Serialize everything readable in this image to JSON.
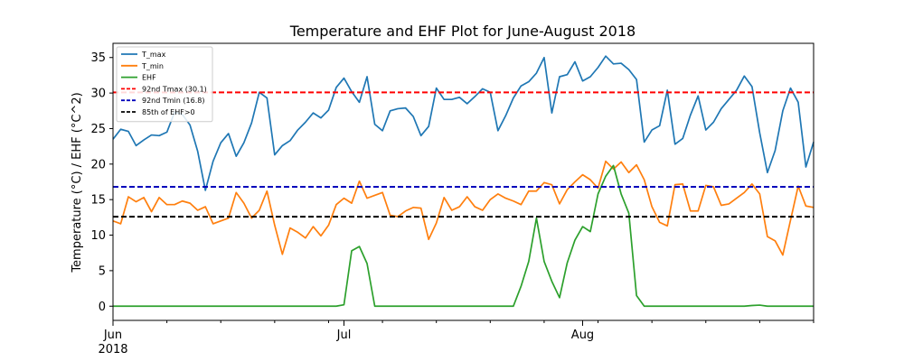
{
  "chart_data": {
    "type": "line",
    "title": "Temperature and EHF Plot for June-August 2018",
    "xlabel": "",
    "ylabel": "Temperature (°C) / EHF (°C^2)",
    "xlim": [
      "2018-06-01",
      "2018-08-31"
    ],
    "ylim": [
      -2,
      37
    ],
    "y_ticks": [
      0,
      5,
      10,
      15,
      20,
      25,
      30,
      35
    ],
    "x_major_ticks": [
      {
        "date": "2018-06-01",
        "label": "Jun",
        "sublabel": "2018"
      },
      {
        "date": "2018-07-01",
        "label": "Jul",
        "sublabel": ""
      },
      {
        "date": "2018-08-01",
        "label": "Aug",
        "sublabel": ""
      }
    ],
    "grid": false,
    "legend_position": "top-left",
    "start_date": "2018-06-01",
    "series": [
      {
        "name": "T_max",
        "color": "#1f77b4",
        "style": "solid",
        "values": [
          23.5,
          24.9,
          24.6,
          22.6,
          23.4,
          24.1,
          24.0,
          24.5,
          27.3,
          27.0,
          25.5,
          21.8,
          16.3,
          20.4,
          23.0,
          24.3,
          21.1,
          23.0,
          25.8,
          30.1,
          29.3,
          21.3,
          22.6,
          23.3,
          24.8,
          25.9,
          27.2,
          26.5,
          27.6,
          30.8,
          32.1,
          30.2,
          28.7,
          32.3,
          25.6,
          24.7,
          27.5,
          27.8,
          27.9,
          26.7,
          24.0,
          25.3,
          30.7,
          29.1,
          29.1,
          29.4,
          28.5,
          29.5,
          30.6,
          30.1,
          24.7,
          26.8,
          29.3,
          31.0,
          31.6,
          32.8,
          35.0,
          27.2,
          32.3,
          32.6,
          34.4,
          31.7,
          32.3,
          33.6,
          35.2,
          34.1,
          34.2,
          33.3,
          31.9,
          23.1,
          24.8,
          25.4,
          30.4,
          22.8,
          23.6,
          26.9,
          29.6,
          24.8,
          25.9,
          27.8,
          29.1,
          30.4,
          32.4,
          30.9,
          24.4,
          18.8,
          21.9,
          27.5,
          30.7,
          28.7,
          19.6,
          23.1
        ]
      },
      {
        "name": "T_min",
        "color": "#ff7f0e",
        "style": "solid",
        "values": [
          12.0,
          11.6,
          15.4,
          14.7,
          15.3,
          13.3,
          15.3,
          14.3,
          14.3,
          14.8,
          14.5,
          13.5,
          14.0,
          11.6,
          12.0,
          12.4,
          16.0,
          14.5,
          12.4,
          13.5,
          16.2,
          11.4,
          7.3,
          11.0,
          10.4,
          9.6,
          11.2,
          9.9,
          11.4,
          14.3,
          15.2,
          14.5,
          17.6,
          15.2,
          15.6,
          16.0,
          12.8,
          12.6,
          13.4,
          13.9,
          13.8,
          9.4,
          11.7,
          15.3,
          13.5,
          14.0,
          15.4,
          14.0,
          13.5,
          15.0,
          15.8,
          15.2,
          14.8,
          14.3,
          16.2,
          16.2,
          17.4,
          17.1,
          14.4,
          16.4,
          17.5,
          18.5,
          17.8,
          16.6,
          20.4,
          19.3,
          20.3,
          18.8,
          19.9,
          17.8,
          14.0,
          11.8,
          11.3,
          17.1,
          17.2,
          13.4,
          13.4,
          17.0,
          16.8,
          14.2,
          14.4,
          15.2,
          16.0,
          17.2,
          15.8,
          9.8,
          9.2,
          7.2,
          12.1,
          16.9,
          14.1,
          13.9
        ]
      },
      {
        "name": "EHF",
        "color": "#2ca02c",
        "style": "solid",
        "values": [
          0,
          0,
          0,
          0,
          0,
          0,
          0,
          0,
          0,
          0,
          0,
          0,
          0,
          0,
          0,
          0,
          0,
          0,
          0,
          0,
          0,
          0,
          0,
          0,
          0,
          0,
          0,
          0,
          0,
          0,
          0.2,
          7.8,
          8.4,
          6.0,
          0,
          0,
          0,
          0,
          0,
          0,
          0,
          0,
          0,
          0,
          0,
          0,
          0,
          0,
          0,
          0,
          0,
          0,
          0,
          2.8,
          6.3,
          12.4,
          6.3,
          3.5,
          1.2,
          6.1,
          9.3,
          11.2,
          10.5,
          15.8,
          18.3,
          19.8,
          15.8,
          13.1,
          1.5,
          0,
          0,
          0,
          0,
          0,
          0,
          0,
          0,
          0,
          0,
          0,
          0,
          0,
          0,
          0.1,
          0.15,
          0,
          0,
          0,
          0,
          0,
          0,
          0
        ]
      },
      {
        "name": "92nd Tmax (30.1)",
        "color": "#ff0000",
        "style": "dashed",
        "constant": 30.1
      },
      {
        "name": "92nd Tmin (16.8)",
        "color": "#0000bb",
        "style": "dashed",
        "constant": 16.8
      },
      {
        "name": "85th of EHF>0",
        "color": "#000000",
        "style": "dashed",
        "constant": 12.6
      }
    ]
  }
}
